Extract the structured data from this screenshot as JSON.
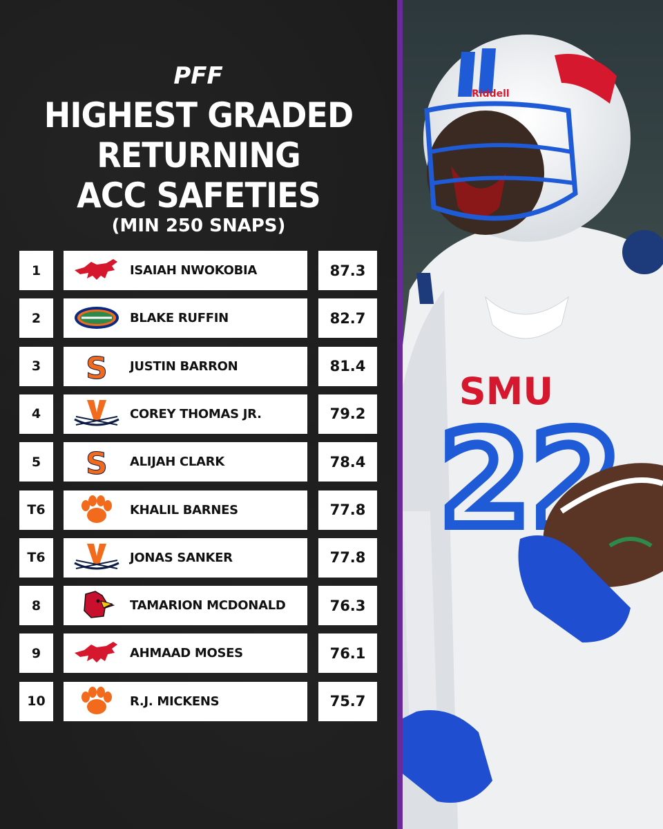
{
  "brand": "PFF",
  "title_lines": [
    "HIGHEST GRADED",
    "RETURNING",
    "ACC SAFETIES"
  ],
  "subtitle": "(MIN 250 SNAPS)",
  "rows": [
    {
      "rank": "1",
      "team": "smu-mustang",
      "name": "ISAIAH NWOKOBIA",
      "grade": "87.3"
    },
    {
      "rank": "2",
      "team": "florida-gator",
      "name": "BLAKE RUFFIN",
      "grade": "82.7"
    },
    {
      "rank": "3",
      "team": "syracuse-s",
      "name": "JUSTIN BARRON",
      "grade": "81.4"
    },
    {
      "rank": "4",
      "team": "virginia-v",
      "name": "COREY THOMAS JR.",
      "grade": "79.2"
    },
    {
      "rank": "5",
      "team": "syracuse-s",
      "name": "ALIJAH CLARK",
      "grade": "78.4"
    },
    {
      "rank": "T6",
      "team": "clemson-paw",
      "name": "KHALIL BARNES",
      "grade": "77.8"
    },
    {
      "rank": "T6",
      "team": "virginia-v",
      "name": "JONAS SANKER",
      "grade": "77.8"
    },
    {
      "rank": "8",
      "team": "louisville-cardinal",
      "name": "TAMARION MCDONALD",
      "grade": "76.3"
    },
    {
      "rank": "9",
      "team": "smu-mustang",
      "name": "AHMAAD MOSES",
      "grade": "76.1"
    },
    {
      "rank": "10",
      "team": "clemson-paw",
      "name": "R.J. MICKENS",
      "grade": "75.7"
    }
  ],
  "photo": {
    "jersey_text": "SMU",
    "jersey_number": "22",
    "helmet_brand": "Riddell",
    "colors": {
      "smu_red": "#d6182e",
      "smu_blue": "#1f5bd6"
    }
  },
  "colors": {
    "background": "#1b1b1b",
    "divider": "#6a2a9a",
    "row_bg": "#ffffff",
    "text": "#111111"
  }
}
